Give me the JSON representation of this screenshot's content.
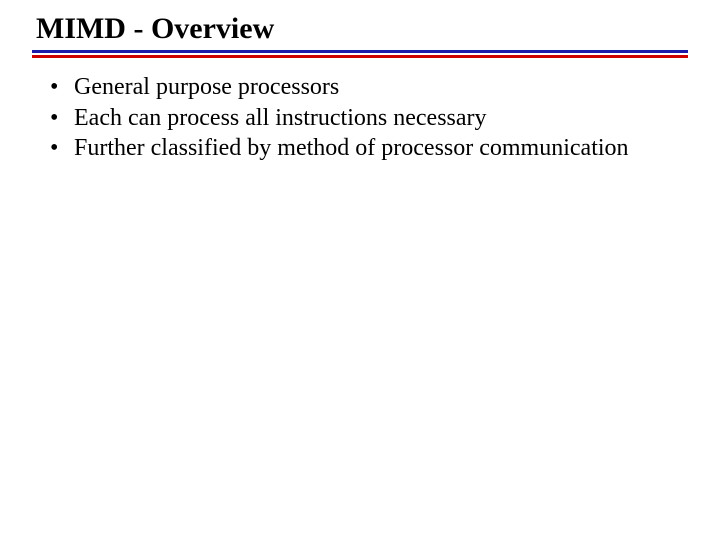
{
  "slide": {
    "title": "MIMD - Overview",
    "bullets": [
      "General purpose processors",
      "Each can process all instructions necessary",
      "Further classified by method of processor communication"
    ]
  },
  "styling": {
    "title_fontsize": 30,
    "title_color": "#000000",
    "body_fontsize": 24,
    "body_color": "#000000",
    "background_color": "#ffffff",
    "divider_top_color": "#1a1aaa",
    "divider_bottom_color": "#cc0000",
    "divider_line_height": 3,
    "font_family": "Times New Roman"
  }
}
